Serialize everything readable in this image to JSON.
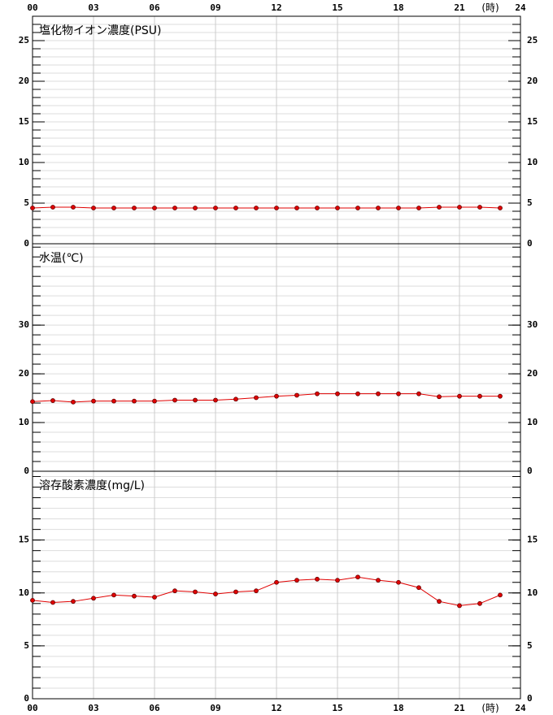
{
  "chart_data": [
    {
      "type": "line",
      "title": "塩化物イオン濃度(PSU)",
      "x_label": "(時)",
      "x": [
        0,
        1,
        2,
        3,
        4,
        5,
        6,
        7,
        8,
        9,
        10,
        11,
        12,
        13,
        14,
        15,
        16,
        17,
        18,
        19,
        20,
        21,
        22,
        23
      ],
      "xlim": [
        0,
        24
      ],
      "xticks": [
        {
          "value": 0,
          "label": "00"
        },
        {
          "value": 3,
          "label": "03"
        },
        {
          "value": 6,
          "label": "06"
        },
        {
          "value": 9,
          "label": "09"
        },
        12,
        15,
        18,
        21,
        24
      ],
      "ylim": [
        0,
        28
      ],
      "yticks": [
        0,
        5,
        10,
        15,
        20,
        25
      ],
      "minor_step": 1,
      "grid": true,
      "series": [
        {
          "color": "#e00000",
          "values": [
            4.4,
            4.5,
            4.5,
            4.4,
            4.4,
            4.4,
            4.4,
            4.4,
            4.4,
            4.4,
            4.4,
            4.4,
            4.4,
            4.4,
            4.4,
            4.4,
            4.4,
            4.4,
            4.4,
            4.4,
            4.5,
            4.5,
            4.5,
            4.4
          ]
        }
      ]
    },
    {
      "type": "line",
      "title": "水温(℃)",
      "x": [
        0,
        1,
        2,
        3,
        4,
        5,
        6,
        7,
        8,
        9,
        10,
        11,
        12,
        13,
        14,
        15,
        16,
        17,
        18,
        19,
        20,
        21,
        22,
        23
      ],
      "xlim": [
        0,
        24
      ],
      "xticks": [
        {
          "value": 0,
          "label": "00"
        },
        {
          "value": 3,
          "label": "03"
        },
        {
          "value": 6,
          "label": "06"
        },
        {
          "value": 9,
          "label": "09"
        },
        12,
        15,
        18,
        21,
        24
      ],
      "ylim": [
        0,
        46.7
      ],
      "yticks": [
        0,
        10,
        20,
        30
      ],
      "minor_step": 2,
      "grid": true,
      "series": [
        {
          "color": "#e00000",
          "values": [
            14.3,
            14.5,
            14.2,
            14.4,
            14.4,
            14.4,
            14.4,
            14.6,
            14.6,
            14.6,
            14.8,
            15.1,
            15.4,
            15.6,
            15.9,
            15.9,
            15.9,
            15.9,
            15.9,
            15.9,
            15.3,
            15.4,
            15.4,
            15.4
          ]
        }
      ]
    },
    {
      "type": "line",
      "title": "溶存酸素濃度(mg/L)",
      "x_label": "(時)",
      "x": [
        0,
        1,
        2,
        3,
        4,
        5,
        6,
        7,
        8,
        9,
        10,
        11,
        12,
        13,
        14,
        15,
        16,
        17,
        18,
        19,
        20,
        21,
        22,
        23
      ],
      "xlim": [
        0,
        24
      ],
      "xticks": [
        {
          "value": 0,
          "label": "00"
        },
        {
          "value": 3,
          "label": "03"
        },
        {
          "value": 6,
          "label": "06"
        },
        {
          "value": 9,
          "label": "09"
        },
        12,
        15,
        18,
        21,
        24
      ],
      "ylim": [
        0,
        21.5
      ],
      "yticks": [
        0,
        5,
        10,
        15
      ],
      "minor_step": 1,
      "grid": true,
      "series": [
        {
          "color": "#e00000",
          "values": [
            9.3,
            9.1,
            9.2,
            9.5,
            9.8,
            9.7,
            9.6,
            10.2,
            10.1,
            9.9,
            10.1,
            10.2,
            11.0,
            11.2,
            11.3,
            11.2,
            11.5,
            11.2,
            11.0,
            10.5,
            9.2,
            8.8,
            9.0,
            9.8
          ]
        }
      ]
    }
  ]
}
